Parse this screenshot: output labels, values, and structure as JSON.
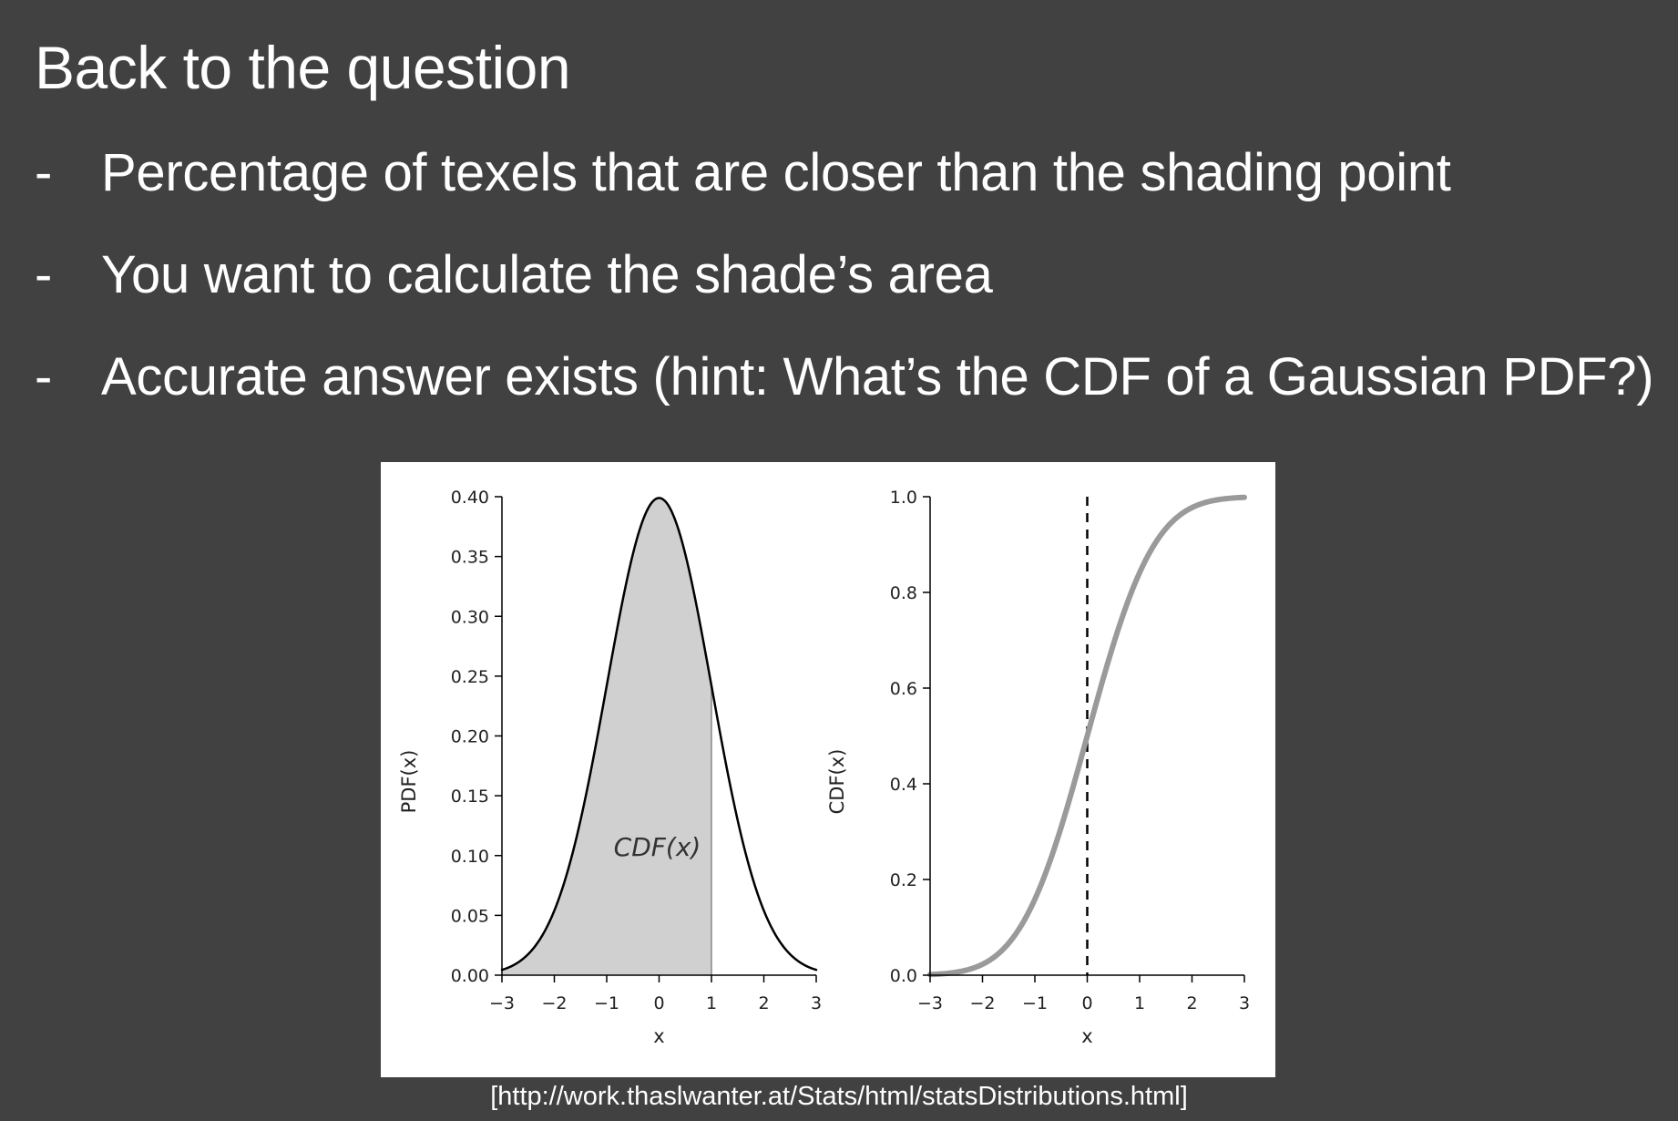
{
  "slide": {
    "title": "Back to the question",
    "bullets": [
      {
        "dash": "-",
        "text": "Percentage of texels that are closer than the shading point"
      },
      {
        "dash": "-",
        "text": "You want to calculate the shade’s area"
      },
      {
        "dash": "-",
        "text": "Accurate answer exists (hint: What’s the CDF of a Gaussian PDF?)"
      }
    ],
    "caption": "[http://work.thaslwanter.at/Stats/html/statsDistributions.html]"
  },
  "chart_data": [
    {
      "type": "area",
      "function": "standard normal PDF",
      "xlabel": "x",
      "ylabel": "PDF(x)",
      "xlim": [
        -3,
        3
      ],
      "ylim": [
        0,
        0.4
      ],
      "xticks": [
        -3,
        -2,
        -1,
        0,
        1,
        2,
        3
      ],
      "xtick_labels": [
        "−3",
        "−2",
        "−1",
        "0",
        "1",
        "2",
        "3"
      ],
      "yticks": [
        0,
        0.05,
        0.1,
        0.15,
        0.2,
        0.25,
        0.3,
        0.35,
        0.4
      ],
      "ytick_labels": [
        "0.00",
        "0.05",
        "0.10",
        "0.15",
        "0.20",
        "0.25",
        "0.30",
        "0.35",
        "0.40"
      ],
      "shaded_region": {
        "from": -3,
        "to": 1,
        "label": "CDF(x)"
      },
      "points": {
        "x": [
          -3,
          -2.5,
          -2,
          -1.5,
          -1,
          -0.5,
          0,
          0.5,
          1,
          1.5,
          2,
          2.5,
          3
        ],
        "y": [
          0.004,
          0.018,
          0.054,
          0.13,
          0.242,
          0.352,
          0.399,
          0.352,
          0.242,
          0.13,
          0.054,
          0.018,
          0.004
        ]
      },
      "colors": {
        "line": "#000000",
        "fill": "#d0d0d0",
        "boundary": "#888888"
      }
    },
    {
      "type": "line",
      "function": "standard normal CDF",
      "xlabel": "x",
      "ylabel": "CDF(x)",
      "xlim": [
        -3,
        3
      ],
      "ylim": [
        0,
        1
      ],
      "xticks": [
        -3,
        -2,
        -1,
        0,
        1,
        2,
        3
      ],
      "xtick_labels": [
        "−3",
        "−2",
        "−1",
        "0",
        "1",
        "2",
        "3"
      ],
      "yticks": [
        0,
        0.2,
        0.4,
        0.6,
        0.8,
        1
      ],
      "ytick_labels": [
        "0.0",
        "0.2",
        "0.4",
        "0.6",
        "0.8",
        "1.0"
      ],
      "vline": {
        "x": 0,
        "style": "dashed"
      },
      "points": {
        "x": [
          -3,
          -2.5,
          -2,
          -1.5,
          -1,
          -0.5,
          0,
          0.5,
          1,
          1.5,
          2,
          2.5,
          3
        ],
        "y": [
          0.001,
          0.006,
          0.023,
          0.067,
          0.159,
          0.309,
          0.5,
          0.691,
          0.841,
          0.933,
          0.977,
          0.994,
          0.999
        ]
      },
      "colors": {
        "line": "#9a9a9a",
        "vline": "#000000"
      }
    }
  ]
}
